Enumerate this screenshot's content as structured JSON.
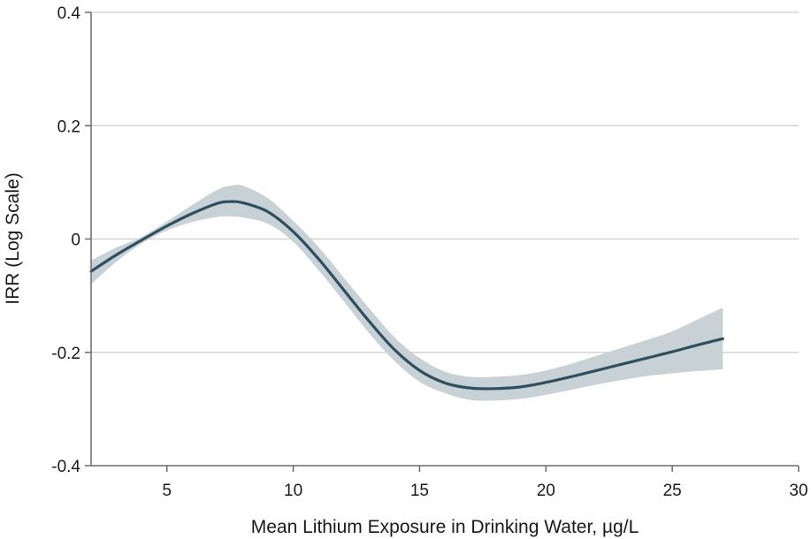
{
  "chart_data": {
    "type": "line",
    "title": "",
    "xlabel": "Mean Lithium Exposure in Drinking Water, µg/L",
    "ylabel": "IRR (Log Scale)",
    "xlim": [
      2,
      30
    ],
    "ylim": [
      -0.4,
      0.4
    ],
    "xticks": [
      5,
      10,
      15,
      20,
      25,
      30
    ],
    "yticks": [
      {
        "value": -0.4,
        "label": "-0.4"
      },
      {
        "value": -0.2,
        "label": "-0.2"
      },
      {
        "value": 0,
        "label": "0"
      },
      {
        "value": 0.2,
        "label": "0.2"
      },
      {
        "value": 0.4,
        "label": "0.4"
      }
    ],
    "grid": "horizontal",
    "colors": {
      "line": "#2f4f5f",
      "band": "#c8d1d6",
      "grid": "#d5d5d5",
      "axis": "#6b6b6b"
    },
    "series": [
      {
        "x": [
          2,
          3,
          4,
          5,
          6,
          7,
          7.5,
          8,
          9,
          10,
          11,
          12,
          13,
          14,
          15,
          16,
          17,
          18,
          19,
          20,
          21,
          22,
          23,
          24,
          25,
          26,
          27
        ],
        "values": [
          -0.057,
          -0.028,
          -0.002,
          0.023,
          0.045,
          0.063,
          0.066,
          0.064,
          0.048,
          0.013,
          -0.035,
          -0.09,
          -0.145,
          -0.195,
          -0.232,
          -0.254,
          -0.263,
          -0.264,
          -0.261,
          -0.253,
          -0.243,
          -0.232,
          -0.221,
          -0.21,
          -0.199,
          -0.187,
          -0.176
        ],
        "lower": [
          -0.08,
          -0.04,
          -0.008,
          0.015,
          0.03,
          0.039,
          0.04,
          0.038,
          0.027,
          -0.005,
          -0.055,
          -0.11,
          -0.166,
          -0.215,
          -0.252,
          -0.272,
          -0.284,
          -0.285,
          -0.282,
          -0.275,
          -0.266,
          -0.257,
          -0.249,
          -0.242,
          -0.237,
          -0.233,
          -0.23
        ],
        "upper": [
          -0.038,
          -0.015,
          0.004,
          0.031,
          0.06,
          0.087,
          0.094,
          0.094,
          0.072,
          0.032,
          -0.014,
          -0.068,
          -0.122,
          -0.173,
          -0.21,
          -0.234,
          -0.243,
          -0.243,
          -0.24,
          -0.232,
          -0.22,
          -0.206,
          -0.192,
          -0.178,
          -0.163,
          -0.142,
          -0.121
        ]
      }
    ]
  }
}
